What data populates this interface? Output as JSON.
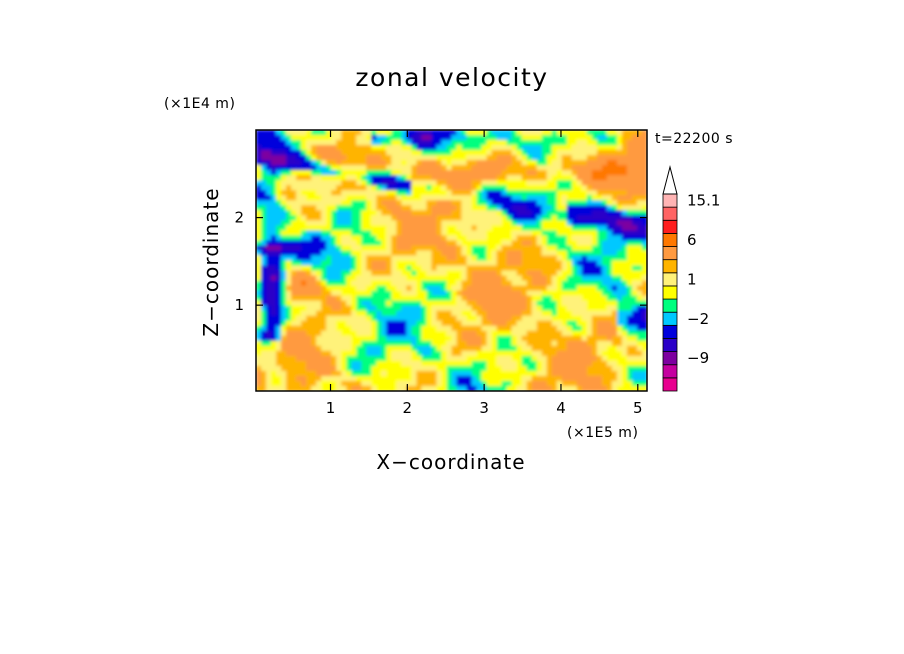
{
  "chart_data": {
    "type": "heatmap",
    "title": "zonal velocity",
    "xlabel": "X−coordinate",
    "ylabel": "Z−coordinate",
    "x_scale_label": "(×1E5 m)",
    "y_scale_label": "(×1E4 m)",
    "time_label": "t=22200 s",
    "xlim": [
      0.03,
      5.12
    ],
    "ylim": [
      0.02,
      3.0
    ],
    "x_ticks": [
      1,
      2,
      3,
      4,
      5
    ],
    "y_ticks": [
      1,
      2
    ],
    "x_tick_labels": [
      "1",
      "2",
      "3",
      "4",
      "5"
    ],
    "y_tick_labels": [
      "1",
      "2"
    ],
    "colorbar": {
      "labels": [
        {
          "text": "15.1",
          "value": 15.1
        },
        {
          "text": "6",
          "value": 6
        },
        {
          "text": "1",
          "value": 1
        },
        {
          "text": "−2",
          "value": -2
        },
        {
          "text": "−9",
          "value": -9
        }
      ],
      "levels": [
        {
          "value": -15,
          "color": "#e8008f"
        },
        {
          "value": -12,
          "color": "#c400a0"
        },
        {
          "value": -9,
          "color": "#7d00a0"
        },
        {
          "value": -6,
          "color": "#2a00c8"
        },
        {
          "value": -4,
          "color": "#0000dc"
        },
        {
          "value": -2,
          "color": "#00c8ff"
        },
        {
          "value": -1,
          "color": "#00ff7f"
        },
        {
          "value": 0,
          "color": "#ffff00"
        },
        {
          "value": 1,
          "color": "#fff27a"
        },
        {
          "value": 2,
          "color": "#ffb400"
        },
        {
          "value": 3,
          "color": "#ff9a40"
        },
        {
          "value": 6,
          "color": "#ff7800"
        },
        {
          "value": 9,
          "color": "#ff1e1e"
        },
        {
          "value": 12,
          "color": "#ff6464"
        },
        {
          "value": 15.1,
          "color": "#ffb4b4"
        }
      ]
    },
    "field_description": "turbulent zonal velocity field, predominantly yellow/green (0 to 3) with orange streaks, blue/cyan bands near top and left edges"
  }
}
